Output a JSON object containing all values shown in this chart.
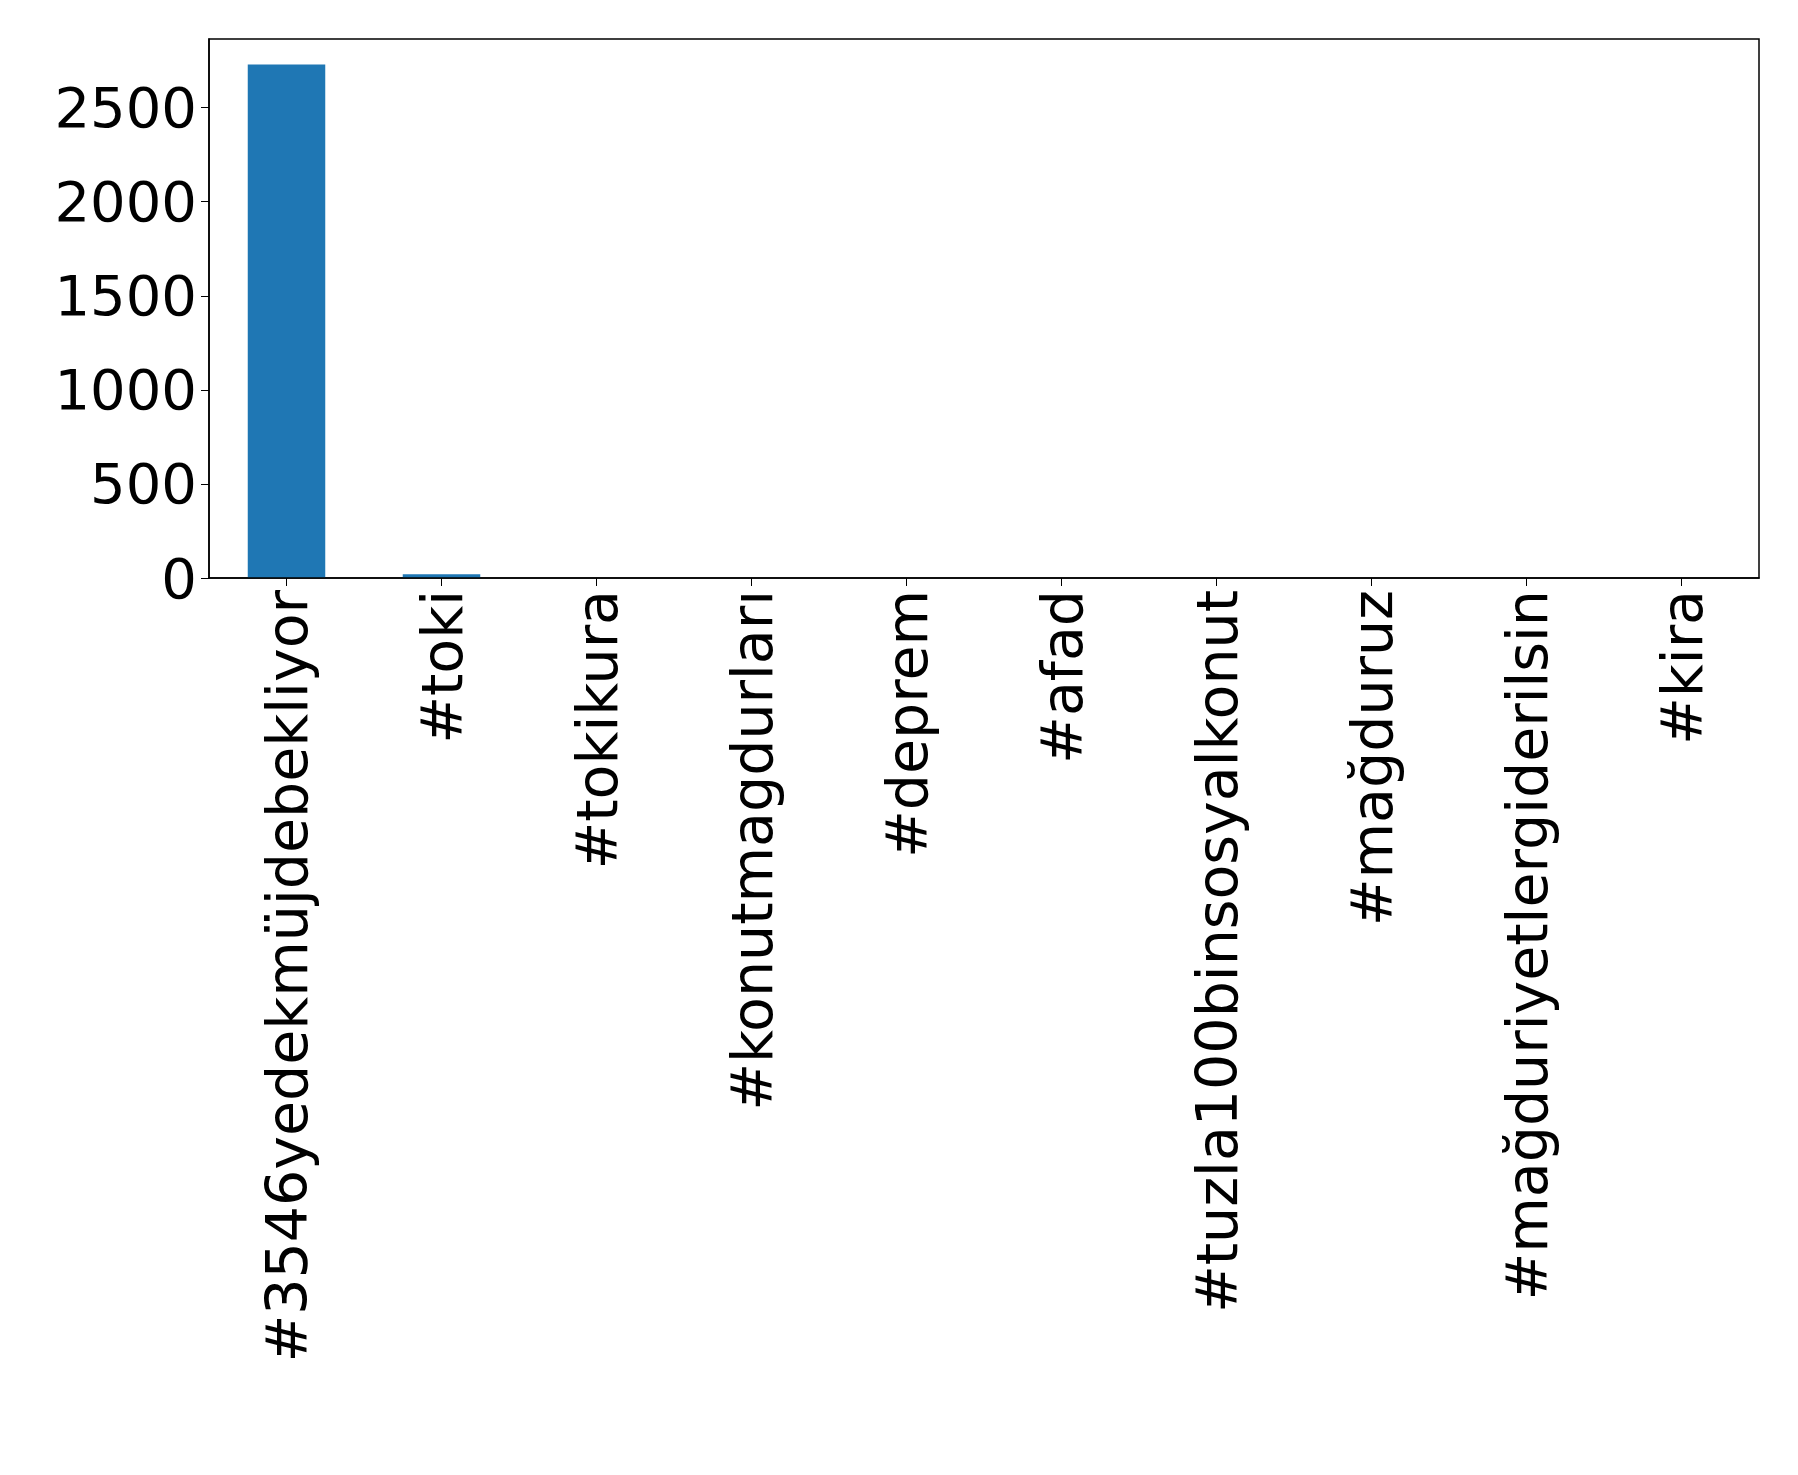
{
  "chart_data": {
    "type": "bar",
    "categories": [
      "#3546yedekmüjdebekliyor",
      "#toki",
      "#tokikura",
      "#konutmagdurları",
      "#deprem",
      "#afad",
      "#tuzla100binsosyalkonut",
      "#mağduruz",
      "#mağduriyetlergiderilsin",
      "#kira"
    ],
    "values": [
      2730,
      20,
      0,
      0,
      0,
      0,
      0,
      0,
      0,
      0
    ],
    "color": "#1f77b4",
    "ylim": [
      0,
      2865
    ],
    "yticks": [
      0,
      500,
      1000,
      1500,
      2000,
      2500
    ],
    "grid": false
  }
}
